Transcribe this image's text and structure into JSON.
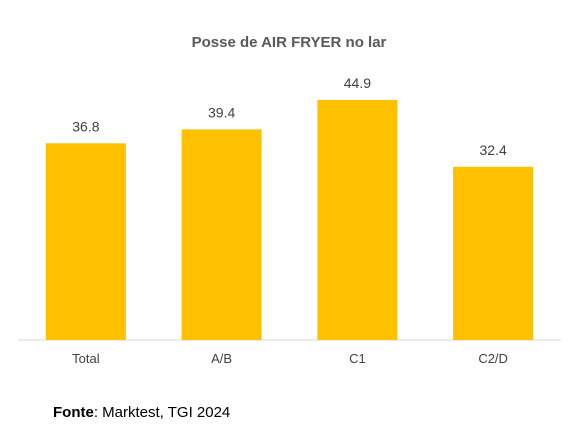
{
  "chart_data": {
    "type": "bar",
    "title": "Posse de AIR FRYER no lar",
    "categories": [
      "Total",
      "A/B",
      "C1",
      "C2/D"
    ],
    "values": [
      36.8,
      39.4,
      44.9,
      32.4
    ],
    "data_labels": [
      "36.8",
      "39.4",
      "44.9",
      "32.4"
    ],
    "bar_color": "#FFC000",
    "ylim": [
      0,
      44.9
    ],
    "grid": false,
    "legend": "none"
  },
  "source": {
    "label": "Fonte",
    "text": ": Marktest, TGI 2024"
  }
}
